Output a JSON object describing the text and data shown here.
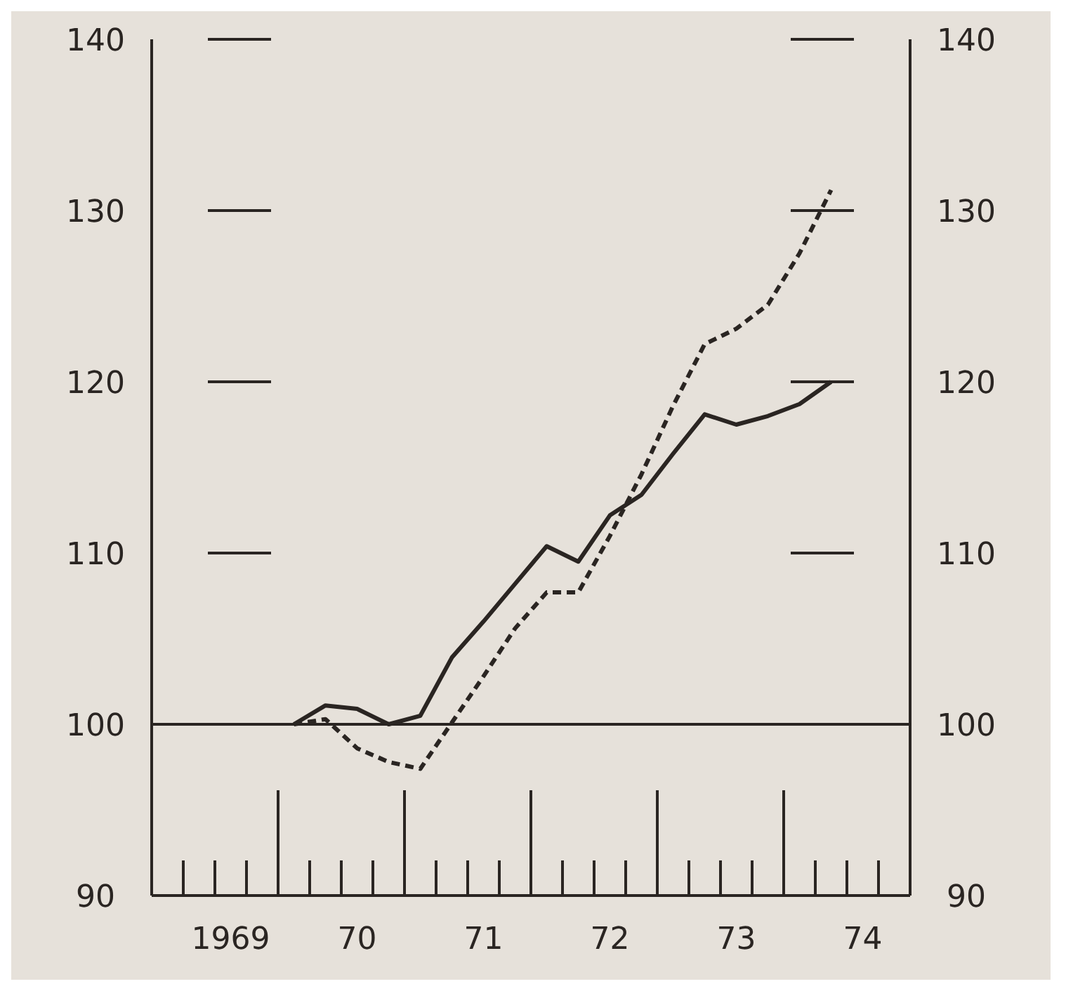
{
  "chart_data": {
    "type": "line",
    "categories": [
      null,
      null,
      "1969",
      null,
      null,
      null,
      "70",
      null,
      null,
      null,
      "71",
      null,
      null,
      null,
      "72",
      null,
      null,
      null,
      "73",
      null,
      null,
      null,
      "74",
      null
    ],
    "series": [
      {
        "color": "#2a2522",
        "line_style": "solid",
        "values": [
          null,
          null,
          null,
          null,
          100,
          101.1,
          100.9,
          100,
          100.5,
          103.9,
          106,
          108.2,
          110.4,
          109.5,
          112.2,
          113.4,
          115.8,
          118.1,
          117.5,
          118,
          118.7,
          120,
          null,
          null
        ]
      },
      {
        "color": "#2a2522",
        "line_style": "dashed",
        "values": [
          null,
          null,
          null,
          null,
          100,
          100.3,
          98.6,
          97.8,
          97.4,
          100.1,
          102.8,
          105.6,
          107.7,
          107.7,
          111,
          114.6,
          118.6,
          122.2,
          123.1,
          124.5,
          127.5,
          131.2,
          null,
          null
        ]
      }
    ],
    "ylim": [
      90,
      140
    ],
    "yticks": [
      90,
      100,
      110,
      120,
      130,
      140
    ],
    "y2lim": [
      90,
      140
    ],
    "y2ticks": [
      90,
      100,
      110,
      120,
      130,
      140
    ],
    "ref_lines": [
      {
        "axis": "y",
        "value": 100,
        "color": "#2a2522",
        "line_style": "solid"
      }
    ],
    "grid": false,
    "legend": false
  }
}
